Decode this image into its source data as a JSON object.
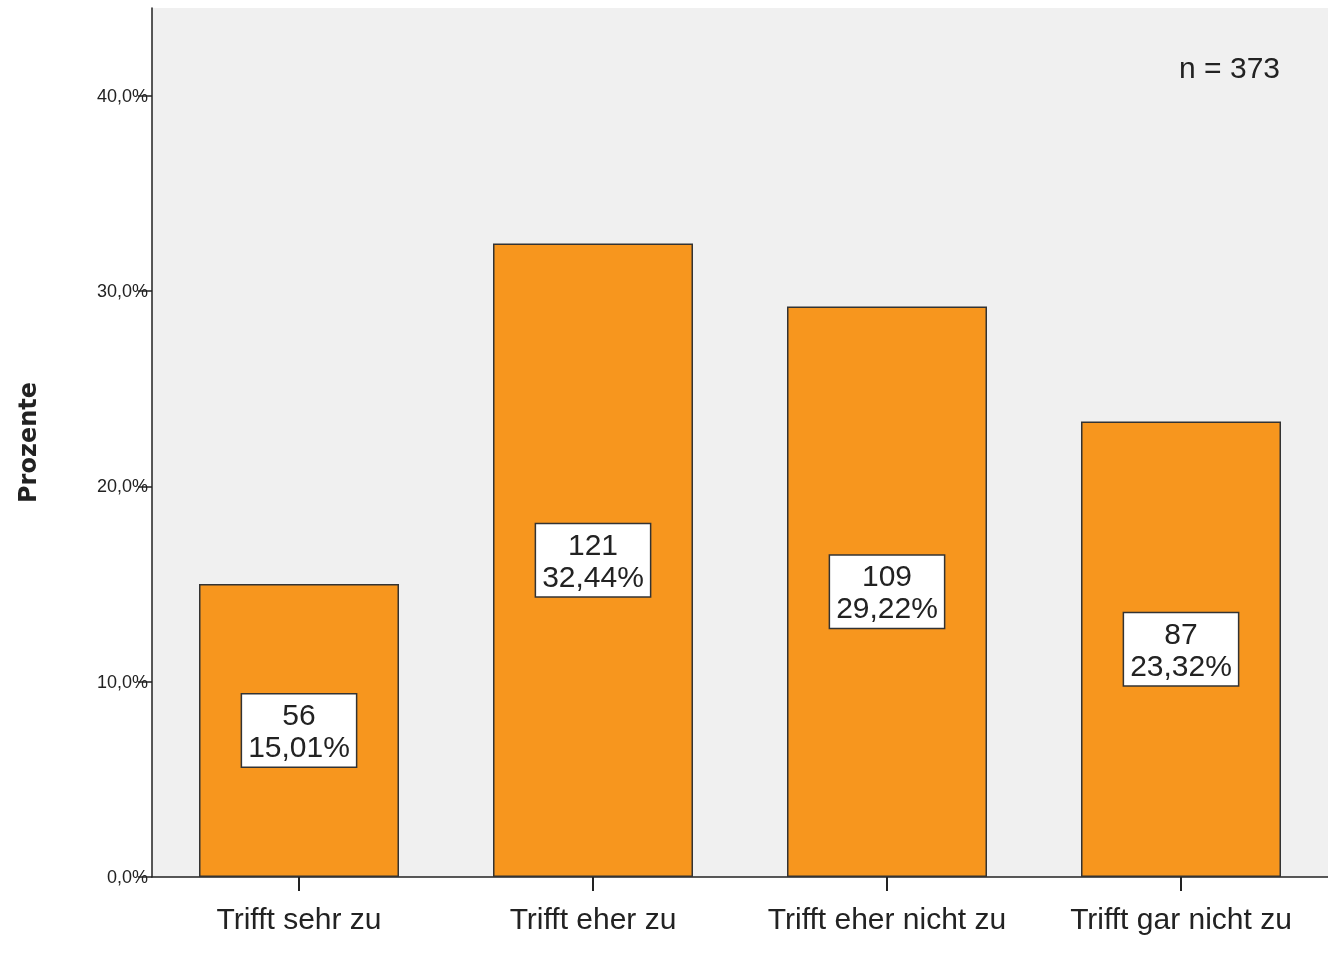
{
  "chart_data": {
    "type": "bar",
    "ylabel": "Prozente",
    "categories": [
      "Trifft sehr zu",
      "Trifft eher zu",
      "Trifft eher nicht zu",
      "Trifft gar nicht zu"
    ],
    "values": [
      15.01,
      32.44,
      29.22,
      23.32
    ],
    "value_labels": [
      "56\n15,01%",
      "121\n32,44%",
      "109\n29,22%",
      "87\n23,32%"
    ],
    "color": "#f7961e",
    "ylim": [
      0,
      44.5
    ],
    "yticks": [
      {
        "value": 0,
        "label": "0,0%"
      },
      {
        "value": 10,
        "label": "10,0%"
      },
      {
        "value": 20,
        "label": "20,0%"
      },
      {
        "value": 30,
        "label": "30,0%"
      },
      {
        "value": 40,
        "label": "40,0%"
      }
    ],
    "grid": false,
    "annotations": [
      "n = 373"
    ]
  }
}
